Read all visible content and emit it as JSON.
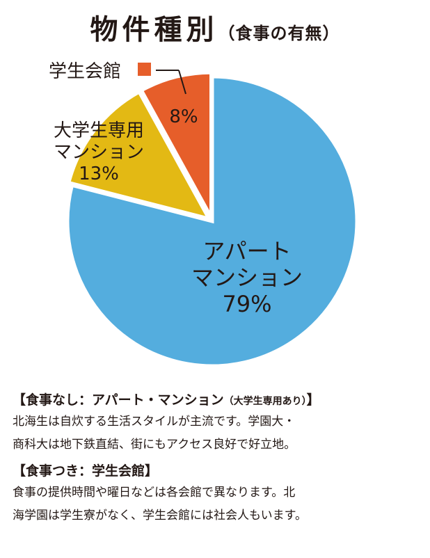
{
  "title": {
    "main": "物件種別",
    "sub": "（食事の有無）"
  },
  "chart_data": {
    "type": "pie",
    "title": "物件種別（食事の有無）",
    "slices": [
      {
        "label_lines": [
          "アパート",
          "マンション"
        ],
        "value": 79,
        "value_label": "79%",
        "color": "#54ADDE"
      },
      {
        "label_lines": [
          "大学生専用",
          "マンション"
        ],
        "value": 13,
        "value_label": "13%",
        "color": "#E3B914"
      },
      {
        "label_lines": [
          "学生会館"
        ],
        "value": 8,
        "value_label": "8%",
        "color": "#E65E2A"
      }
    ]
  },
  "notes": [
    {
      "heading_open": "【",
      "heading_main": "食事なし：アパート・マンション",
      "heading_paren": "（大学生専用あり）",
      "heading_close": "】",
      "lines": [
        "北海生は自炊する生活スタイルが主流です。学園大・",
        "商科大は地下鉄直結、街にもアクセス良好で好立地。"
      ]
    },
    {
      "heading_open": "【",
      "heading_main": "食事つき：学生会館",
      "heading_paren": "",
      "heading_close": "】",
      "lines": [
        "食事の提供時間や曜日などは各会館で異なります。北",
        "海学園は学生寮がなく、学生会館には社会人もいます。"
      ]
    }
  ]
}
